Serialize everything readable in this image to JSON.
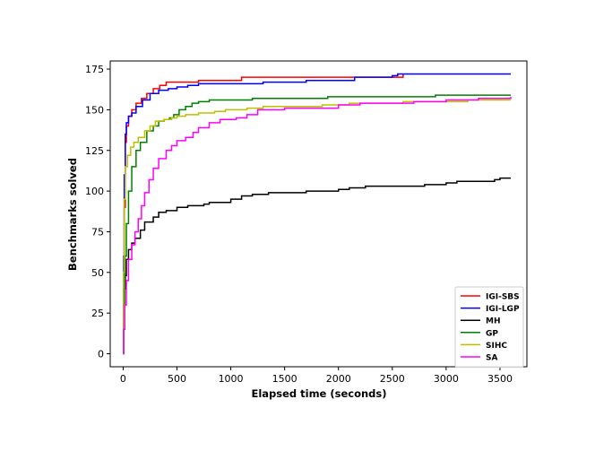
{
  "chart_data": {
    "type": "line",
    "title": "",
    "xlabel": "Elapsed time (seconds)",
    "ylabel": "Benchmarks solved",
    "xlim": [
      -120,
      3750
    ],
    "ylim": [
      -8,
      180
    ],
    "xticks": [
      0,
      500,
      1000,
      1500,
      2000,
      2500,
      3000,
      3500
    ],
    "yticks": [
      0,
      25,
      50,
      75,
      100,
      125,
      150,
      175
    ],
    "grid": false,
    "legend_position": "lower-right",
    "series": [
      {
        "name": "IGI-SBS",
        "color": "#ff0000",
        "points": [
          [
            0,
            0
          ],
          [
            5,
            40
          ],
          [
            10,
            90
          ],
          [
            20,
            130
          ],
          [
            30,
            140
          ],
          [
            50,
            146
          ],
          [
            80,
            150
          ],
          [
            120,
            154
          ],
          [
            170,
            157
          ],
          [
            220,
            160
          ],
          [
            280,
            163
          ],
          [
            340,
            165
          ],
          [
            400,
            167
          ],
          [
            550,
            167
          ],
          [
            700,
            168
          ],
          [
            1100,
            170
          ],
          [
            1300,
            170
          ],
          [
            2100,
            170
          ],
          [
            2160,
            170
          ],
          [
            2600,
            172
          ]
        ]
      },
      {
        "name": "IGI-LGP",
        "color": "#0000ff",
        "points": [
          [
            0,
            0
          ],
          [
            5,
            60
          ],
          [
            10,
            110
          ],
          [
            20,
            135
          ],
          [
            30,
            142
          ],
          [
            50,
            146
          ],
          [
            80,
            148
          ],
          [
            120,
            152
          ],
          [
            180,
            156
          ],
          [
            250,
            160
          ],
          [
            330,
            162
          ],
          [
            420,
            163
          ],
          [
            500,
            164
          ],
          [
            600,
            165
          ],
          [
            700,
            166
          ],
          [
            1100,
            166
          ],
          [
            1300,
            167
          ],
          [
            1700,
            168
          ],
          [
            2150,
            170
          ],
          [
            2500,
            171
          ],
          [
            2550,
            172
          ],
          [
            3600,
            172
          ]
        ]
      },
      {
        "name": "MH",
        "color": "#000000",
        "points": [
          [
            0,
            40
          ],
          [
            20,
            48
          ],
          [
            30,
            58
          ],
          [
            50,
            64
          ],
          [
            80,
            68
          ],
          [
            110,
            71
          ],
          [
            160,
            76
          ],
          [
            200,
            81
          ],
          [
            280,
            84
          ],
          [
            330,
            87
          ],
          [
            400,
            88
          ],
          [
            500,
            90
          ],
          [
            600,
            91
          ],
          [
            750,
            92
          ],
          [
            800,
            93
          ],
          [
            1000,
            95
          ],
          [
            1100,
            97
          ],
          [
            1200,
            98
          ],
          [
            1350,
            99
          ],
          [
            1700,
            100
          ],
          [
            2000,
            101
          ],
          [
            2100,
            102
          ],
          [
            2250,
            103
          ],
          [
            2800,
            104
          ],
          [
            3000,
            105
          ],
          [
            3100,
            106
          ],
          [
            3450,
            107
          ],
          [
            3500,
            108
          ],
          [
            3600,
            108
          ]
        ]
      },
      {
        "name": "GP",
        "color": "#008000",
        "points": [
          [
            0,
            0
          ],
          [
            5,
            30
          ],
          [
            15,
            60
          ],
          [
            30,
            80
          ],
          [
            50,
            100
          ],
          [
            80,
            115
          ],
          [
            120,
            125
          ],
          [
            160,
            130
          ],
          [
            220,
            137
          ],
          [
            280,
            140
          ],
          [
            330,
            143
          ],
          [
            380,
            144
          ],
          [
            430,
            145
          ],
          [
            470,
            147
          ],
          [
            520,
            150
          ],
          [
            580,
            152
          ],
          [
            640,
            154
          ],
          [
            700,
            155
          ],
          [
            800,
            156
          ],
          [
            1000,
            156
          ],
          [
            1200,
            157
          ],
          [
            1500,
            157
          ],
          [
            1900,
            158
          ],
          [
            2600,
            158
          ],
          [
            2900,
            159
          ],
          [
            3600,
            159
          ]
        ]
      },
      {
        "name": "SIHC",
        "color": "#bfbf00",
        "points": [
          [
            0,
            0
          ],
          [
            5,
            50
          ],
          [
            10,
            95
          ],
          [
            20,
            115
          ],
          [
            40,
            122
          ],
          [
            70,
            127
          ],
          [
            100,
            130
          ],
          [
            140,
            133
          ],
          [
            200,
            137
          ],
          [
            250,
            140
          ],
          [
            300,
            143
          ],
          [
            380,
            144
          ],
          [
            450,
            145
          ],
          [
            500,
            146
          ],
          [
            580,
            147
          ],
          [
            700,
            148
          ],
          [
            850,
            149
          ],
          [
            950,
            150
          ],
          [
            1150,
            151
          ],
          [
            1300,
            152
          ],
          [
            1800,
            152
          ],
          [
            1850,
            153
          ],
          [
            2100,
            154
          ],
          [
            2600,
            155
          ],
          [
            3200,
            156
          ],
          [
            3600,
            156
          ]
        ]
      },
      {
        "name": "SA",
        "color": "#ff00ff",
        "points": [
          [
            0,
            0
          ],
          [
            5,
            15
          ],
          [
            15,
            30
          ],
          [
            30,
            45
          ],
          [
            50,
            58
          ],
          [
            80,
            67
          ],
          [
            110,
            75
          ],
          [
            140,
            83
          ],
          [
            170,
            91
          ],
          [
            200,
            99
          ],
          [
            240,
            107
          ],
          [
            280,
            114
          ],
          [
            330,
            120
          ],
          [
            400,
            125
          ],
          [
            450,
            128
          ],
          [
            500,
            131
          ],
          [
            580,
            133
          ],
          [
            650,
            136
          ],
          [
            700,
            139
          ],
          [
            800,
            142
          ],
          [
            900,
            144
          ],
          [
            1050,
            145
          ],
          [
            1150,
            147
          ],
          [
            1250,
            150
          ],
          [
            1500,
            151
          ],
          [
            1900,
            151
          ],
          [
            2000,
            153
          ],
          [
            2200,
            154
          ],
          [
            2700,
            155
          ],
          [
            3000,
            156
          ],
          [
            3300,
            157
          ],
          [
            3600,
            158
          ]
        ]
      }
    ]
  }
}
